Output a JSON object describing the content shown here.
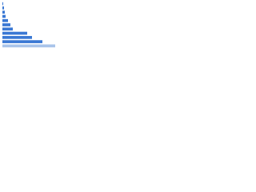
{
  "chart_data": {
    "type": "hbar",
    "categories": [
      null,
      null,
      null,
      null,
      null,
      null,
      null,
      null,
      null,
      null,
      null
    ],
    "values": [
      1,
      2,
      3,
      4,
      7,
      10,
      13,
      31,
      37,
      50,
      66
    ],
    "colors": [
      "#3a78d4",
      "#3a78d4",
      "#3a78d4",
      "#3a78d4",
      "#3a78d4",
      "#3a78d4",
      "#3a78d4",
      "#3a78d4",
      "#3a78d4",
      "#3a78d4",
      "#a9c4ea"
    ],
    "xlim": [
      0,
      70
    ]
  }
}
